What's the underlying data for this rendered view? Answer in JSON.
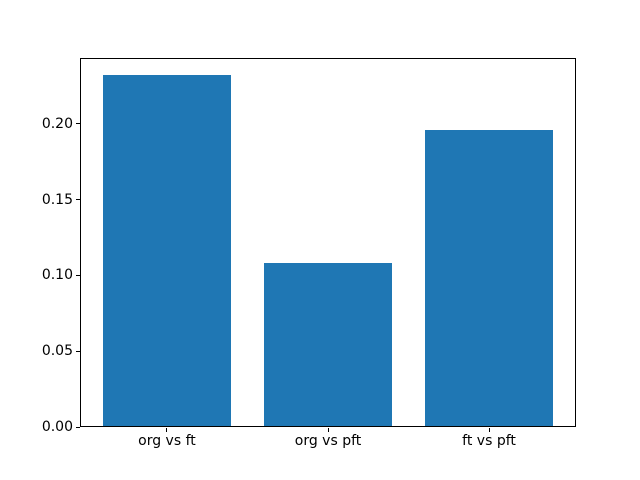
{
  "chart_data": {
    "type": "bar",
    "title": "",
    "xlabel": "",
    "ylabel": "",
    "categories": [
      "org vs ft",
      "org vs pft",
      "ft vs pft"
    ],
    "values": [
      0.232,
      0.108,
      0.196
    ],
    "x_positions": [
      0,
      1,
      2
    ],
    "bar_width": 0.8,
    "xlim": [
      -0.54,
      2.54
    ],
    "ylim": [
      0,
      0.2436
    ],
    "yticks": [
      0.0,
      0.05,
      0.1,
      0.15,
      0.2
    ],
    "yticklabels": [
      "0.00",
      "0.05",
      "0.10",
      "0.15",
      "0.20"
    ],
    "grid": false,
    "legend": null,
    "bar_color": "#1f77b4",
    "axis_color": "#000000",
    "background_color": "#ffffff"
  }
}
